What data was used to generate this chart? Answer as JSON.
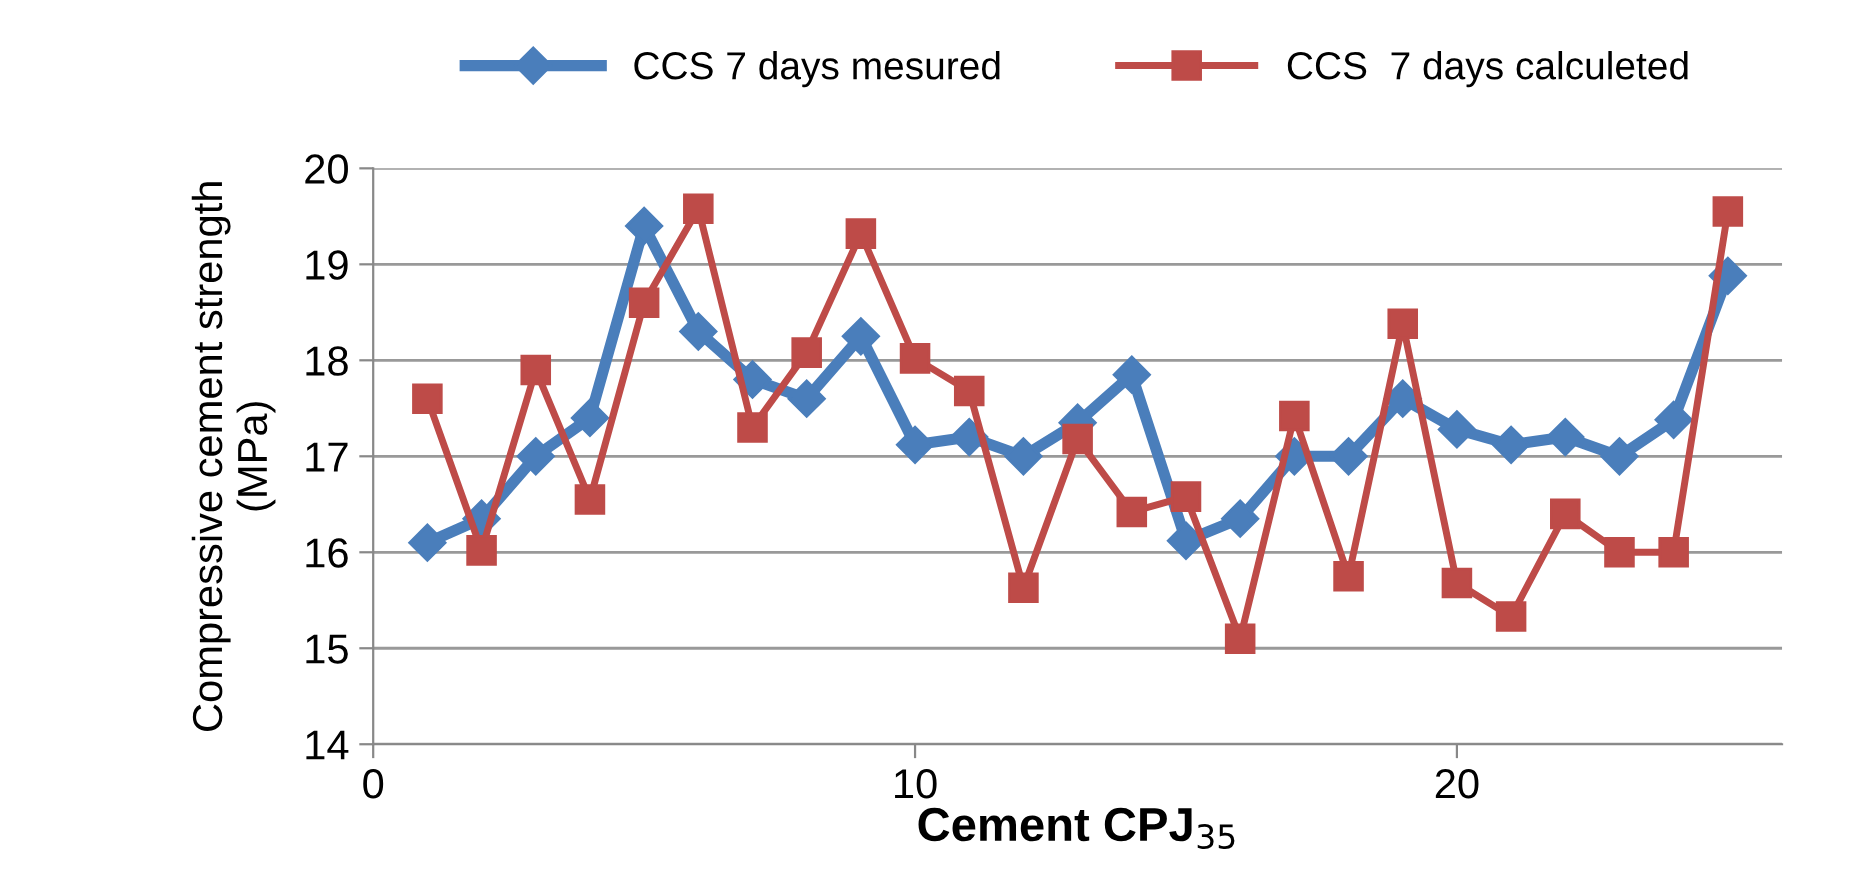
{
  "chart_data": {
    "type": "line",
    "xlabel": "Cement CPJ$_{35}$",
    "ylabel": "Compressive cement strength\n(MPa)",
    "x": [
      1,
      2,
      3,
      4,
      5,
      6,
      7,
      8,
      9,
      10,
      11,
      12,
      13,
      14,
      15,
      16,
      17,
      18,
      19,
      20,
      21,
      22,
      23,
      24,
      25
    ],
    "series": [
      {
        "name": "CCS 7 days mesured",
        "color": "#4a7ebb",
        "marker": "diamond",
        "values": [
          16.1,
          16.35,
          17.0,
          17.4,
          19.4,
          18.3,
          17.8,
          17.6,
          18.25,
          17.12,
          17.2,
          17.0,
          17.35,
          17.85,
          16.12,
          16.35,
          17.0,
          17.0,
          17.6,
          17.28,
          17.12,
          17.2,
          17.0,
          17.38,
          18.88
        ]
      },
      {
        "name": "CCS  7 days calculeted",
        "color": "#be4b48",
        "marker": "square",
        "values": [
          17.6,
          16.02,
          17.9,
          16.55,
          18.6,
          19.58,
          17.3,
          18.08,
          19.32,
          18.02,
          17.68,
          15.63,
          17.18,
          16.42,
          16.58,
          15.1,
          17.42,
          15.75,
          18.38,
          15.68,
          15.33,
          16.4,
          16.0,
          16.0,
          19.55
        ]
      }
    ],
    "xlim": [
      0,
      26
    ],
    "xticks": [
      0,
      10,
      20
    ],
    "ylim": [
      14,
      20
    ],
    "yticks": [
      14,
      15,
      16,
      17,
      18,
      19,
      20
    ],
    "grid": "y",
    "legend": "top"
  }
}
